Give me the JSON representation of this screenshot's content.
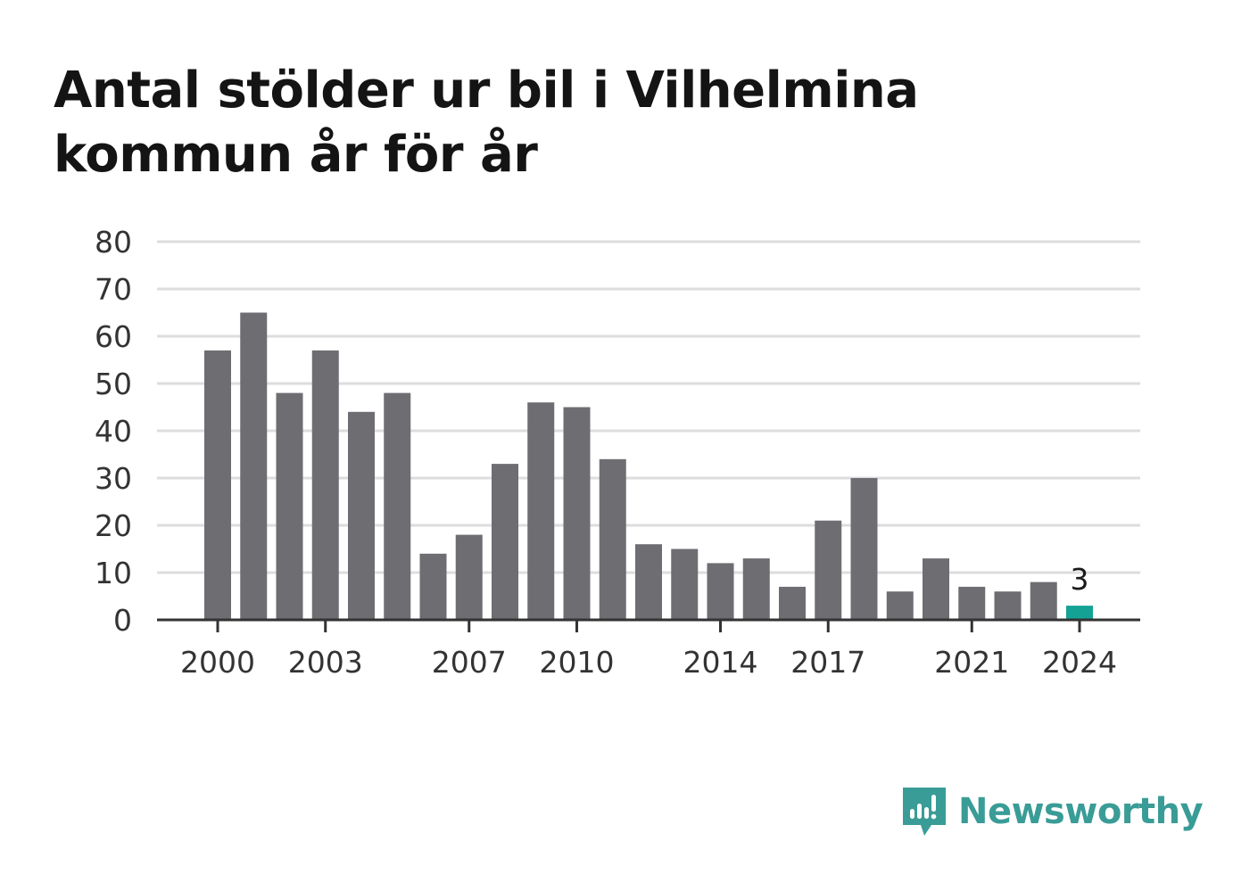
{
  "title": "Antal stölder ur bil i Vilhelmina kommun år för år",
  "brand": {
    "name": "Newsworthy",
    "color": "#3a9c96",
    "icon": "newsworthy-logo-icon"
  },
  "colors": {
    "bar": "#6e6d72",
    "highlight": "#14a295",
    "grid": "#dddddd",
    "axis": "#333333"
  },
  "chart_data": {
    "type": "bar",
    "categories": [
      2000,
      2001,
      2002,
      2003,
      2004,
      2005,
      2006,
      2007,
      2008,
      2009,
      2010,
      2011,
      2012,
      2013,
      2014,
      2015,
      2016,
      2017,
      2018,
      2019,
      2020,
      2021,
      2022,
      2023,
      2024
    ],
    "values": [
      57,
      65,
      48,
      57,
      44,
      48,
      14,
      18,
      33,
      46,
      45,
      34,
      16,
      15,
      12,
      13,
      7,
      21,
      30,
      6,
      13,
      7,
      6,
      8,
      3
    ],
    "highlight": {
      "category": 2024,
      "label": "3"
    },
    "xticks": [
      "2000",
      "2003",
      "2007",
      "2010",
      "2014",
      "2017",
      "2021",
      "2024"
    ],
    "yticks": [
      "0",
      "10",
      "20",
      "30",
      "40",
      "50",
      "60",
      "70",
      "80"
    ],
    "ylim": [
      0,
      80
    ],
    "grid": true,
    "legend": "none"
  }
}
